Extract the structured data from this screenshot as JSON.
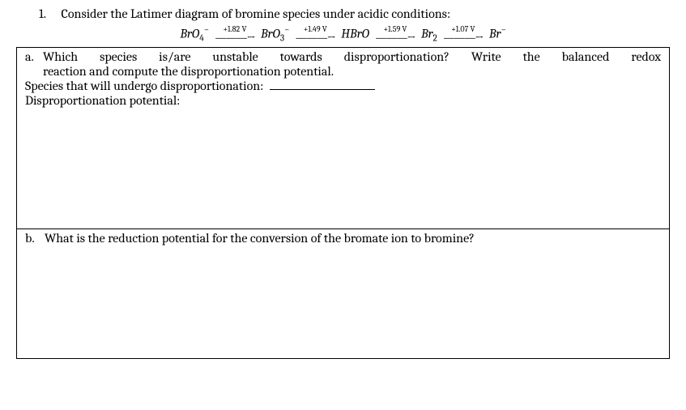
{
  "question": {
    "number": "1.",
    "text": "Consider the Latimer diagram of bromine species under acidic conditions:"
  },
  "latimer": {
    "species1": {
      "base": "BrO",
      "sub": "4",
      "sup": "−"
    },
    "potential1": "+1.82 V",
    "species2": {
      "base": "BrO",
      "sub": "3",
      "sup": "−"
    },
    "potential2": "+1.49 V",
    "species3": {
      "base": "HBrO",
      "sub": "",
      "sup": ""
    },
    "potential3": "+1.59 V",
    "species4": {
      "base": "Br",
      "sub": "2",
      "sup": ""
    },
    "potential4": "+1.07 V",
    "species5": {
      "base": "Br",
      "sub": "",
      "sup": "−"
    },
    "arrow": "———→"
  },
  "partA": {
    "label": "a.",
    "line1": "Which species is/are unstable towards disproportionation? Write the balanced redox",
    "line2": "reaction and compute the disproportionation potential.",
    "prompt1": "Species that will undergo disproportionation:",
    "prompt2": "Disproportionation potential:"
  },
  "partB": {
    "label": "b.",
    "text": "What is the reduction potential for the conversion of the bromate ion to bromine?"
  }
}
